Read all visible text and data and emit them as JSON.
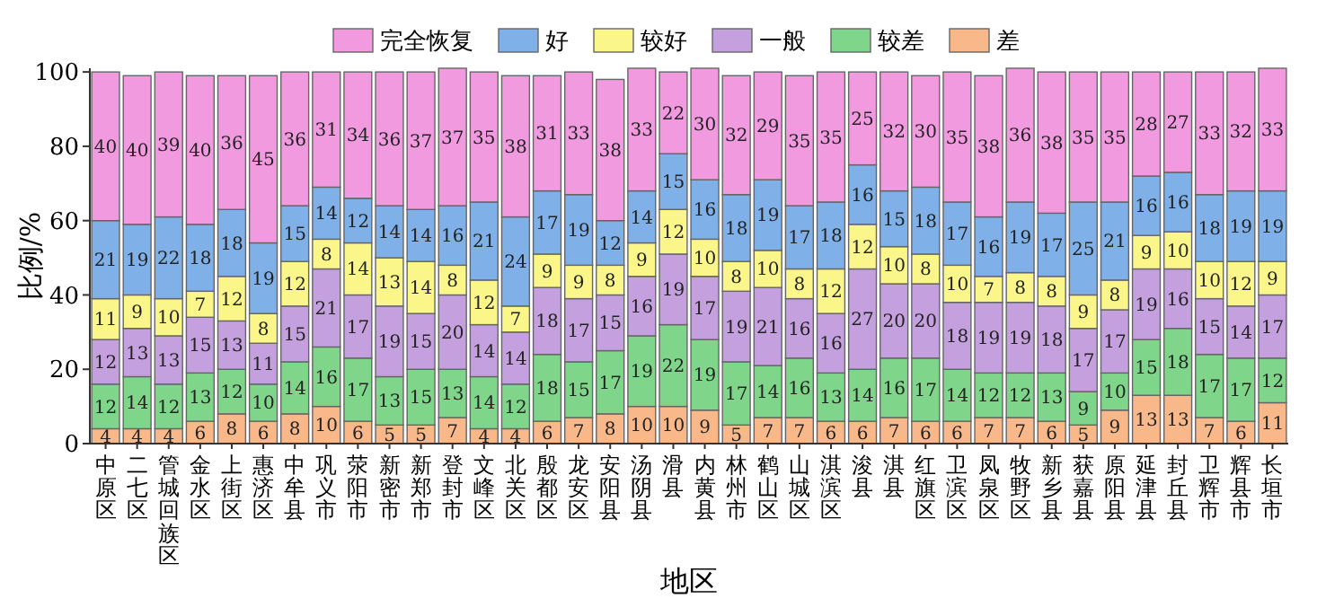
{
  "chart_data": {
    "type": "bar",
    "stacked": true,
    "xlabel": "地区",
    "ylabel": "比例/%",
    "ylim": [
      0,
      101
    ],
    "yticks": [
      0,
      20,
      40,
      60,
      80,
      100
    ],
    "legend": "top",
    "data_labels": true,
    "categories": [
      "中原区",
      "二七区",
      "管城回族区",
      "金水区",
      "上街区",
      "惠济区",
      "中牟县",
      "巩义市",
      "荥阳市",
      "新密市",
      "新郑市",
      "登封市",
      "文峰区",
      "北关区",
      "殷都区",
      "龙安区",
      "安阳县",
      "汤阴县",
      "滑县",
      "内黄县",
      "林州市",
      "鹤山区",
      "山城区",
      "淇滨区",
      "浚县",
      "淇县",
      "红旗区",
      "卫滨区",
      "凤泉区",
      "牧野区",
      "新乡县",
      "获嘉县",
      "原阳县",
      "延津县",
      "封丘县",
      "卫辉市",
      "辉县市",
      "长垣市"
    ],
    "series": [
      {
        "name": "差",
        "color": "#f9b88a",
        "values": [
          4,
          4,
          4,
          6,
          8,
          6,
          8,
          10,
          6,
          5,
          5,
          7,
          4,
          4,
          6,
          7,
          8,
          10,
          10,
          9,
          5,
          7,
          7,
          6,
          6,
          7,
          6,
          6,
          7,
          7,
          6,
          5,
          9,
          13,
          13,
          7,
          6,
          11
        ]
      },
      {
        "name": "较差",
        "color": "#7fd68a",
        "values": [
          12,
          14,
          12,
          13,
          12,
          10,
          14,
          16,
          17,
          13,
          15,
          13,
          14,
          12,
          18,
          15,
          17,
          19,
          22,
          19,
          17,
          14,
          16,
          13,
          14,
          16,
          17,
          14,
          12,
          12,
          13,
          9,
          10,
          15,
          18,
          17,
          17,
          12
        ]
      },
      {
        "name": "一般",
        "color": "#c5a0de",
        "values": [
          12,
          13,
          13,
          15,
          13,
          11,
          15,
          21,
          17,
          19,
          15,
          20,
          14,
          14,
          18,
          17,
          15,
          16,
          19,
          17,
          19,
          21,
          16,
          16,
          27,
          20,
          20,
          18,
          19,
          19,
          18,
          17,
          17,
          19,
          16,
          15,
          14,
          17
        ]
      },
      {
        "name": "较好",
        "color": "#fbf68a",
        "values": [
          11,
          9,
          10,
          7,
          12,
          8,
          12,
          8,
          14,
          13,
          14,
          8,
          12,
          7,
          9,
          9,
          8,
          9,
          12,
          10,
          8,
          10,
          8,
          12,
          12,
          10,
          8,
          10,
          7,
          8,
          8,
          9,
          8,
          9,
          10,
          10,
          12,
          9
        ]
      },
      {
        "name": "好",
        "color": "#7fb0e8",
        "values": [
          21,
          19,
          22,
          18,
          18,
          19,
          15,
          14,
          12,
          14,
          14,
          16,
          21,
          24,
          17,
          19,
          12,
          14,
          15,
          16,
          18,
          19,
          17,
          18,
          16,
          15,
          18,
          17,
          16,
          19,
          17,
          25,
          21,
          16,
          16,
          18,
          19,
          19
        ]
      },
      {
        "name": "完全恢复",
        "color": "#f29ae0",
        "values": [
          40,
          40,
          39,
          40,
          36,
          45,
          36,
          31,
          34,
          36,
          37,
          37,
          35,
          38,
          31,
          33,
          38,
          33,
          22,
          30,
          32,
          29,
          35,
          35,
          25,
          32,
          30,
          35,
          38,
          36,
          38,
          35,
          35,
          28,
          27,
          33,
          32,
          33
        ]
      }
    ]
  }
}
